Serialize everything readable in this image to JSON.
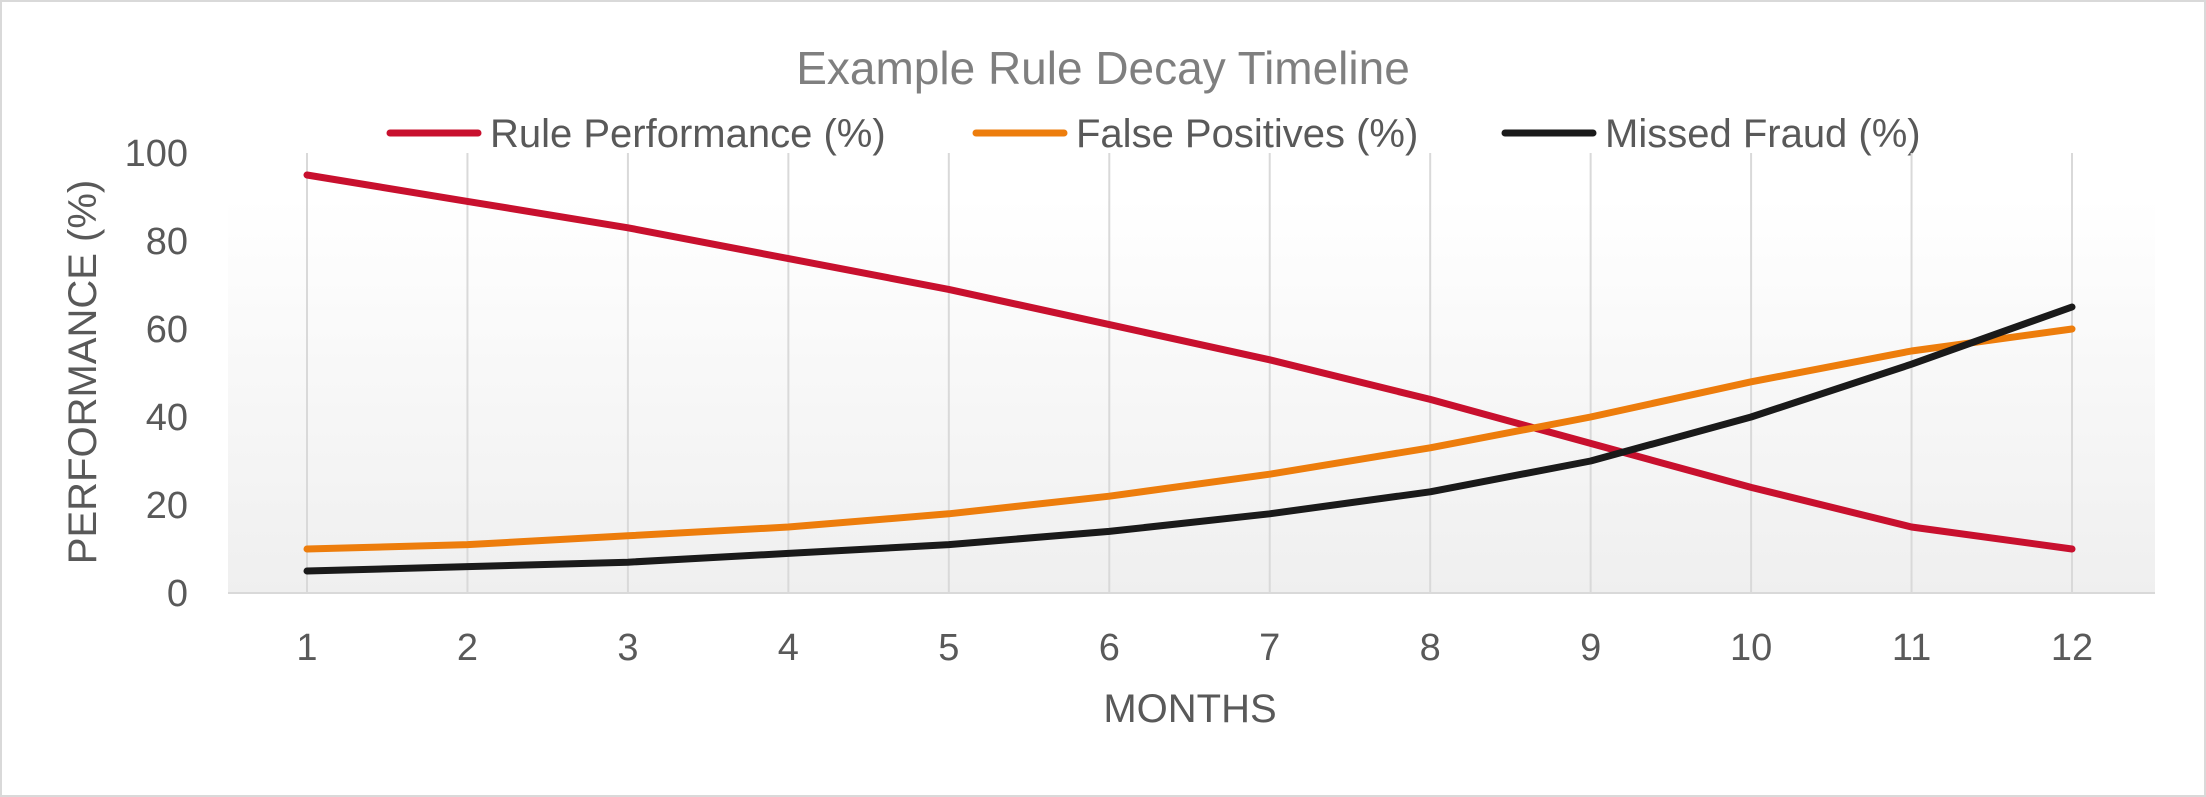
{
  "chart_data": {
    "type": "line",
    "title": "Example Rule Decay Timeline",
    "xlabel": "MONTHS",
    "ylabel": "PERFORMANCE (%)",
    "x": [
      1,
      2,
      3,
      4,
      5,
      6,
      7,
      8,
      9,
      10,
      11,
      12
    ],
    "x_tick_labels": [
      "1",
      "2",
      "3",
      "4",
      "5",
      "6",
      "7",
      "8",
      "9",
      "10",
      "11",
      "12"
    ],
    "ylim": [
      0,
      100
    ],
    "y_ticks": [
      0,
      20,
      40,
      60,
      80,
      100
    ],
    "y_tick_labels": [
      "0",
      "20",
      "40",
      "60",
      "80",
      "100"
    ],
    "grid": "vertical",
    "legend_position": "top",
    "series": [
      {
        "name": "Rule Performance (%)",
        "color": "#c8102e",
        "values": [
          95,
          89,
          83,
          76,
          69,
          61,
          53,
          44,
          34,
          24,
          15,
          10
        ]
      },
      {
        "name": "False Positives (%)",
        "color": "#ed7d0c",
        "values": [
          10,
          11,
          13,
          15,
          18,
          22,
          27,
          33,
          40,
          48,
          55,
          60
        ]
      },
      {
        "name": "Missed Fraud (%)",
        "color": "#1a1a1a",
        "values": [
          5,
          6,
          7,
          9,
          11,
          14,
          18,
          23,
          30,
          40,
          52,
          65
        ]
      }
    ]
  }
}
